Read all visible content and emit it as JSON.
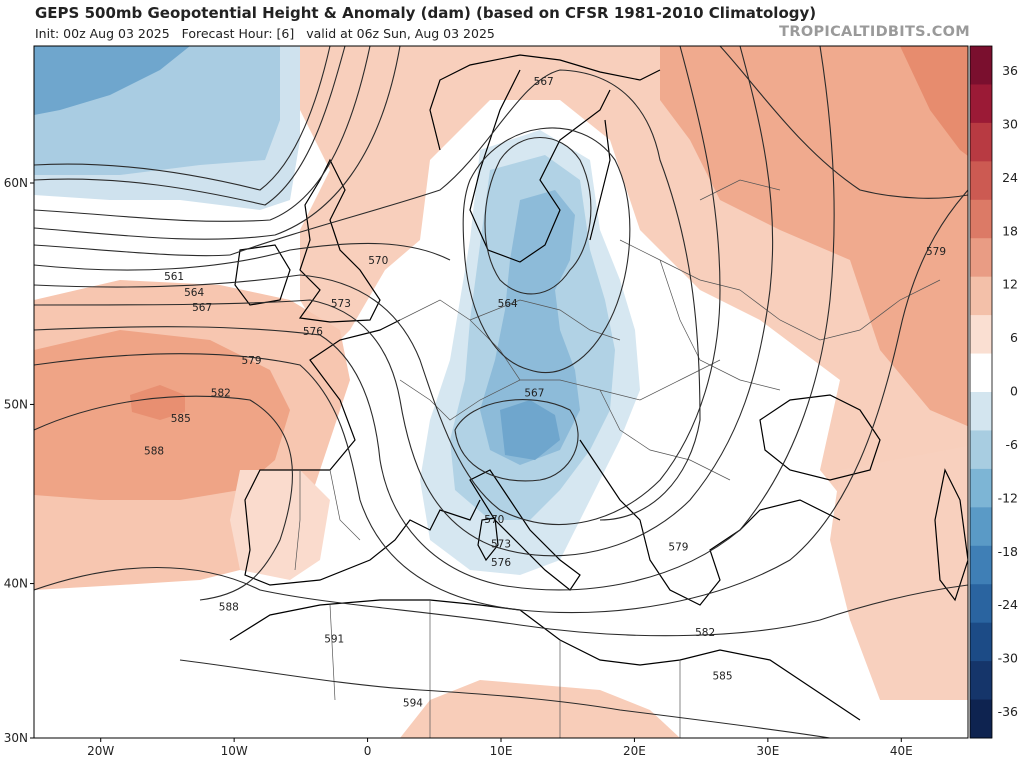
{
  "title": "GEPS 500mb Geopotential Height & Anomaly (dam) (based on CFSR 1981-2010 Climatology)",
  "subtitle": {
    "init": "Init: 00z Aug 03 2025",
    "forecast": "Forecast Hour: [6]",
    "valid": "valid at 06z Sun, Aug 03 2025"
  },
  "brand": "TROPICALTIDBITS.COM",
  "lat_labels": [
    {
      "text": "60N",
      "lat": 60
    },
    {
      "text": "50N",
      "lat": 50
    },
    {
      "text": "40N",
      "lat": 40
    },
    {
      "text": "30N",
      "lat": 30
    }
  ],
  "lon_labels": [
    {
      "text": "20W",
      "lon": -20
    },
    {
      "text": "10W",
      "lon": -10
    },
    {
      "text": "0",
      "lon": 0
    },
    {
      "text": "10E",
      "lon": 10
    },
    {
      "text": "20E",
      "lon": 20
    },
    {
      "text": "30E",
      "lon": 30
    },
    {
      "text": "40E",
      "lon": 40
    }
  ],
  "colorbar": {
    "labels": [
      "36",
      "30",
      "24",
      "18",
      "12",
      "6",
      "0",
      "-6",
      "-12",
      "-18",
      "-24",
      "-30",
      "-36"
    ],
    "colors": [
      "#7a0f2e",
      "#9b1a36",
      "#b83a42",
      "#cc5a52",
      "#dc7a66",
      "#e99c84",
      "#f3c0a9",
      "#fadfd2",
      "#ffffff",
      "#d3e5ef",
      "#a8cde1",
      "#7db5d5",
      "#5a9ac6",
      "#3f7fb6",
      "#2a64a0",
      "#1c4b86",
      "#15356a",
      "#0e2350"
    ]
  },
  "contour_labels": [
    "561",
    "564",
    "567",
    "570",
    "573",
    "576",
    "579",
    "582",
    "585",
    "588",
    "591",
    "594"
  ],
  "map_labels": [
    {
      "text": "567",
      "lon": 13.2,
      "lat": 63.8
    },
    {
      "text": "564",
      "lon": 10.5,
      "lat": 54.9
    },
    {
      "text": "567",
      "lon": 12.5,
      "lat": 50.6
    },
    {
      "text": "570",
      "lon": 0.8,
      "lat": 56.8
    },
    {
      "text": "573",
      "lon": -2.0,
      "lat": 54.9
    },
    {
      "text": "576",
      "lon": -4.1,
      "lat": 53.6
    },
    {
      "text": "579",
      "lon": -8.7,
      "lat": 52.2
    },
    {
      "text": "582",
      "lon": -11.0,
      "lat": 50.6
    },
    {
      "text": "585",
      "lon": -14.0,
      "lat": 49.3
    },
    {
      "text": "588",
      "lon": -16.0,
      "lat": 47.6
    },
    {
      "text": "561",
      "lon": -14.5,
      "lat": 56.1
    },
    {
      "text": "564",
      "lon": -13.0,
      "lat": 55.4
    },
    {
      "text": "567",
      "lon": -12.4,
      "lat": 54.7
    },
    {
      "text": "570",
      "lon": 9.5,
      "lat": 43.8
    },
    {
      "text": "573",
      "lon": 10.0,
      "lat": 42.4
    },
    {
      "text": "576",
      "lon": 10.0,
      "lat": 41.3
    },
    {
      "text": "579",
      "lon": 23.3,
      "lat": 42.2
    },
    {
      "text": "579",
      "lon": 42.6,
      "lat": 57.2
    },
    {
      "text": "582",
      "lon": 25.3,
      "lat": 37.0
    },
    {
      "text": "585",
      "lon": 26.6,
      "lat": 34.2
    },
    {
      "text": "588",
      "lon": -10.4,
      "lat": 38.6
    },
    {
      "text": "591",
      "lon": -2.5,
      "lat": 36.6
    },
    {
      "text": "594",
      "lon": 3.4,
      "lat": 32.4
    }
  ],
  "colors": {
    "anom_pos_light": "#fbe0d3",
    "anom_pos_mid": "#f5c1aa",
    "anom_pos_strong": "#ee9f82",
    "anom_neg_light": "#d8e8f2",
    "anom_neg_mid": "#aed0e4",
    "anom_neg_strong": "#7fb2d3",
    "contour": "#2b2b2b",
    "coast": "#000000",
    "border": "#3a3a3a"
  }
}
